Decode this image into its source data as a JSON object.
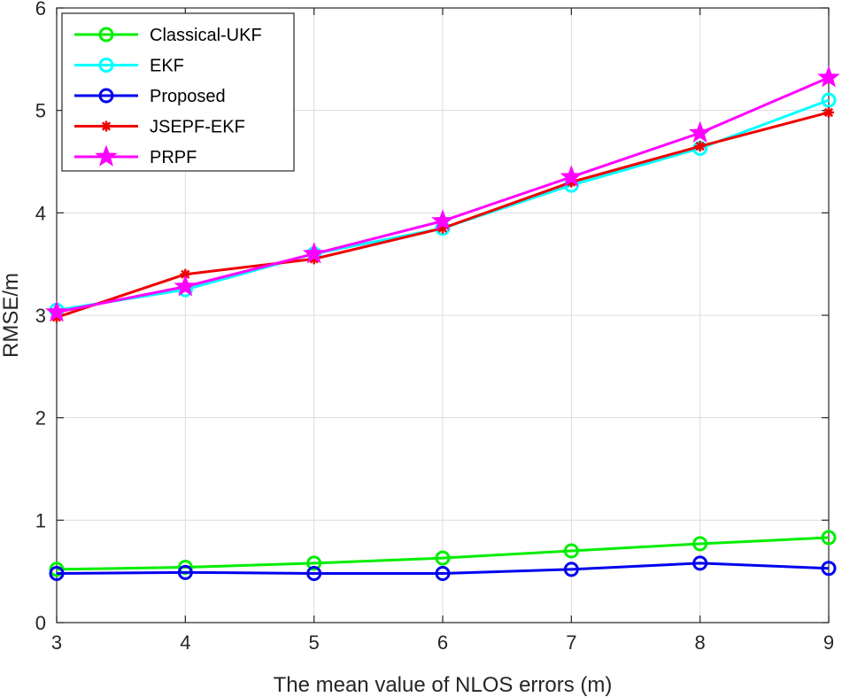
{
  "chart_data": {
    "type": "line",
    "title": "",
    "xlabel": "The mean value of NLOS errors (m)",
    "ylabel": "RMSE/m",
    "x": [
      3,
      4,
      5,
      6,
      7,
      8,
      9
    ],
    "xlim": [
      3,
      9
    ],
    "ylim": [
      0,
      6
    ],
    "xticks": [
      "3",
      "4",
      "5",
      "6",
      "7",
      "8",
      "9"
    ],
    "yticks": [
      "0",
      "1",
      "2",
      "3",
      "4",
      "5",
      "6"
    ],
    "grid": true,
    "legend_position": "top-left",
    "series": [
      {
        "name": "Classical-UKF",
        "color": "#00ee00",
        "marker": "circle",
        "values": [
          0.52,
          0.54,
          0.58,
          0.63,
          0.7,
          0.77,
          0.83
        ]
      },
      {
        "name": "EKF",
        "color": "#00ffff",
        "marker": "circle",
        "values": [
          3.05,
          3.25,
          3.6,
          3.85,
          4.27,
          4.63,
          5.1
        ]
      },
      {
        "name": "Proposed",
        "color": "#0000ee",
        "marker": "circle",
        "values": [
          0.48,
          0.49,
          0.48,
          0.48,
          0.52,
          0.58,
          0.53
        ]
      },
      {
        "name": "JSEPF-EKF",
        "color": "#ee0000",
        "marker": "asterisk",
        "values": [
          2.98,
          3.4,
          3.55,
          3.85,
          4.3,
          4.65,
          4.98
        ]
      },
      {
        "name": "PRPF",
        "color": "#ff00ff",
        "marker": "star",
        "values": [
          3.03,
          3.28,
          3.6,
          3.92,
          4.35,
          4.78,
          5.32
        ]
      }
    ]
  }
}
